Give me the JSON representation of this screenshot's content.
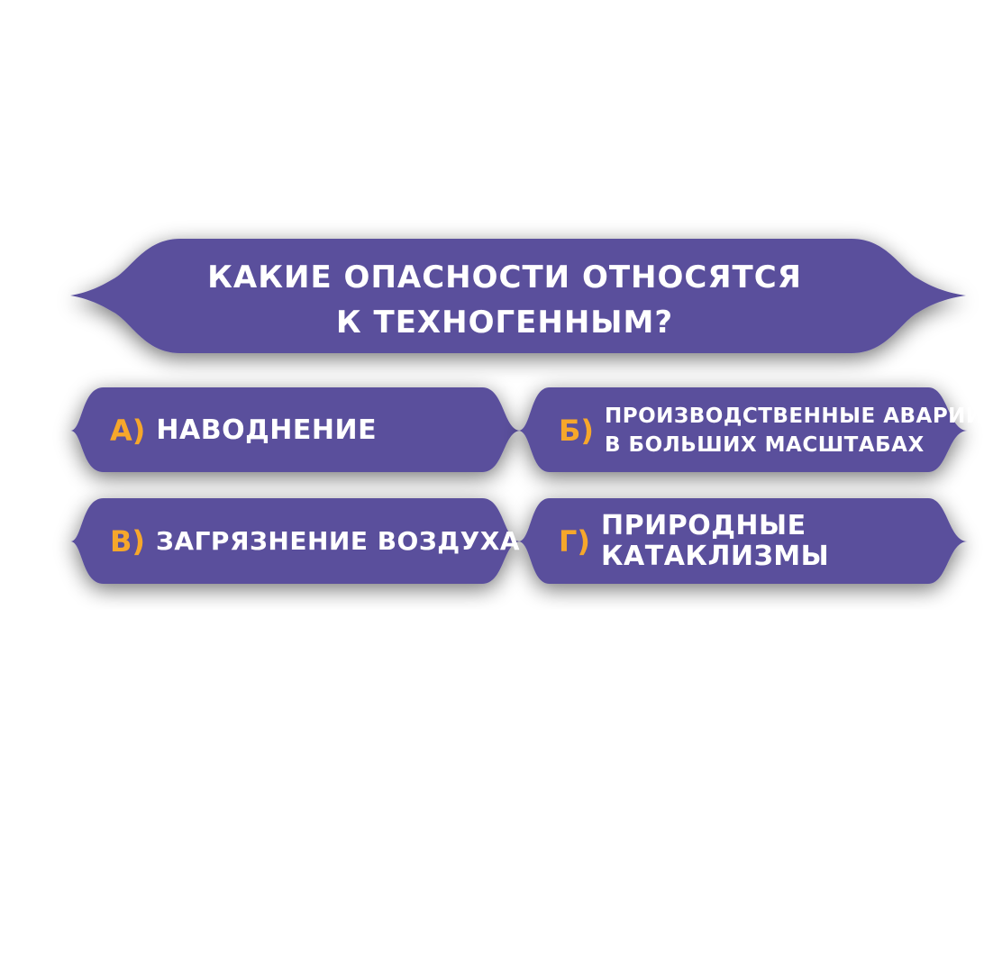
{
  "question": {
    "line1": "какие опасности относятся",
    "line2": "к техногенным?"
  },
  "answers": [
    {
      "letter": "а)",
      "line1": "наводнение",
      "line2": ""
    },
    {
      "letter": "б)",
      "line1": "производственные аварии",
      "line2": "в больших масштабах"
    },
    {
      "letter": "в)",
      "line1": "загрязнение воздуха",
      "line2": ""
    },
    {
      "letter": "г)",
      "line1": "природные",
      "line2": "катаклизмы"
    }
  ],
  "colors": {
    "panel": "#5a4f9c",
    "accent": "#f6a72b",
    "text": "#ffffff",
    "background": "#ffffff"
  }
}
